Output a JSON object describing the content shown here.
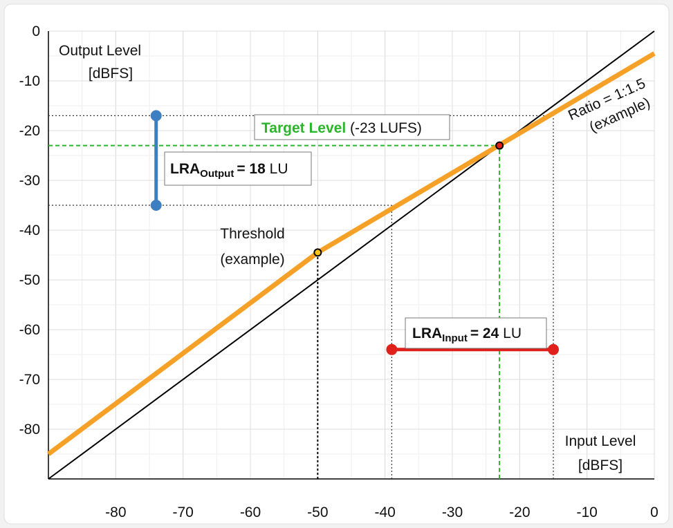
{
  "chart_data": {
    "type": "line",
    "xlim": [
      -90,
      0
    ],
    "ylim": [
      -90,
      0
    ],
    "xticks": [
      -80,
      -70,
      -60,
      -50,
      -40,
      -30,
      -20,
      -10,
      0
    ],
    "yticks": [
      -80,
      -70,
      -60,
      -50,
      -40,
      -30,
      -20,
      -10,
      0
    ],
    "grid": true,
    "minor_grid": true,
    "y_label": [
      "Output Level",
      "[dBFS]"
    ],
    "x_label": [
      "Input Level",
      "[dBFS]"
    ],
    "series": [
      {
        "color": "#000000",
        "x": [
          -90,
          0
        ],
        "values": [
          -90,
          0
        ]
      },
      {
        "color": "#f5a128",
        "x": [
          -90,
          -50,
          0
        ],
        "values": [
          -85,
          -44.5,
          -4.5
        ]
      }
    ],
    "threshold": {
      "x": -50,
      "y": -44.5,
      "label": [
        "Threshold",
        "(example)"
      ],
      "color": "#f5c518"
    },
    "target": {
      "x": -23,
      "y": -23,
      "color": "#e0201b",
      "line_color": "#2bb52b",
      "label": "Target Level",
      "label_rest": "(-23 LUFS)"
    },
    "ratio_label": [
      "Ratio = 1:1.5",
      "(example)"
    ],
    "lra_output": {
      "x": -74,
      "values": [
        -17,
        -35
      ],
      "color": "#3d7fc1",
      "label": "LRA",
      "sub": "Output",
      "eq": "= 18",
      "unit": "LU"
    },
    "lra_input": {
      "y": -64,
      "values": [
        -39,
        -15
      ],
      "color": "#e0201b",
      "label": "LRA",
      "sub": "Input",
      "eq": "= 24",
      "unit": "LU"
    }
  }
}
